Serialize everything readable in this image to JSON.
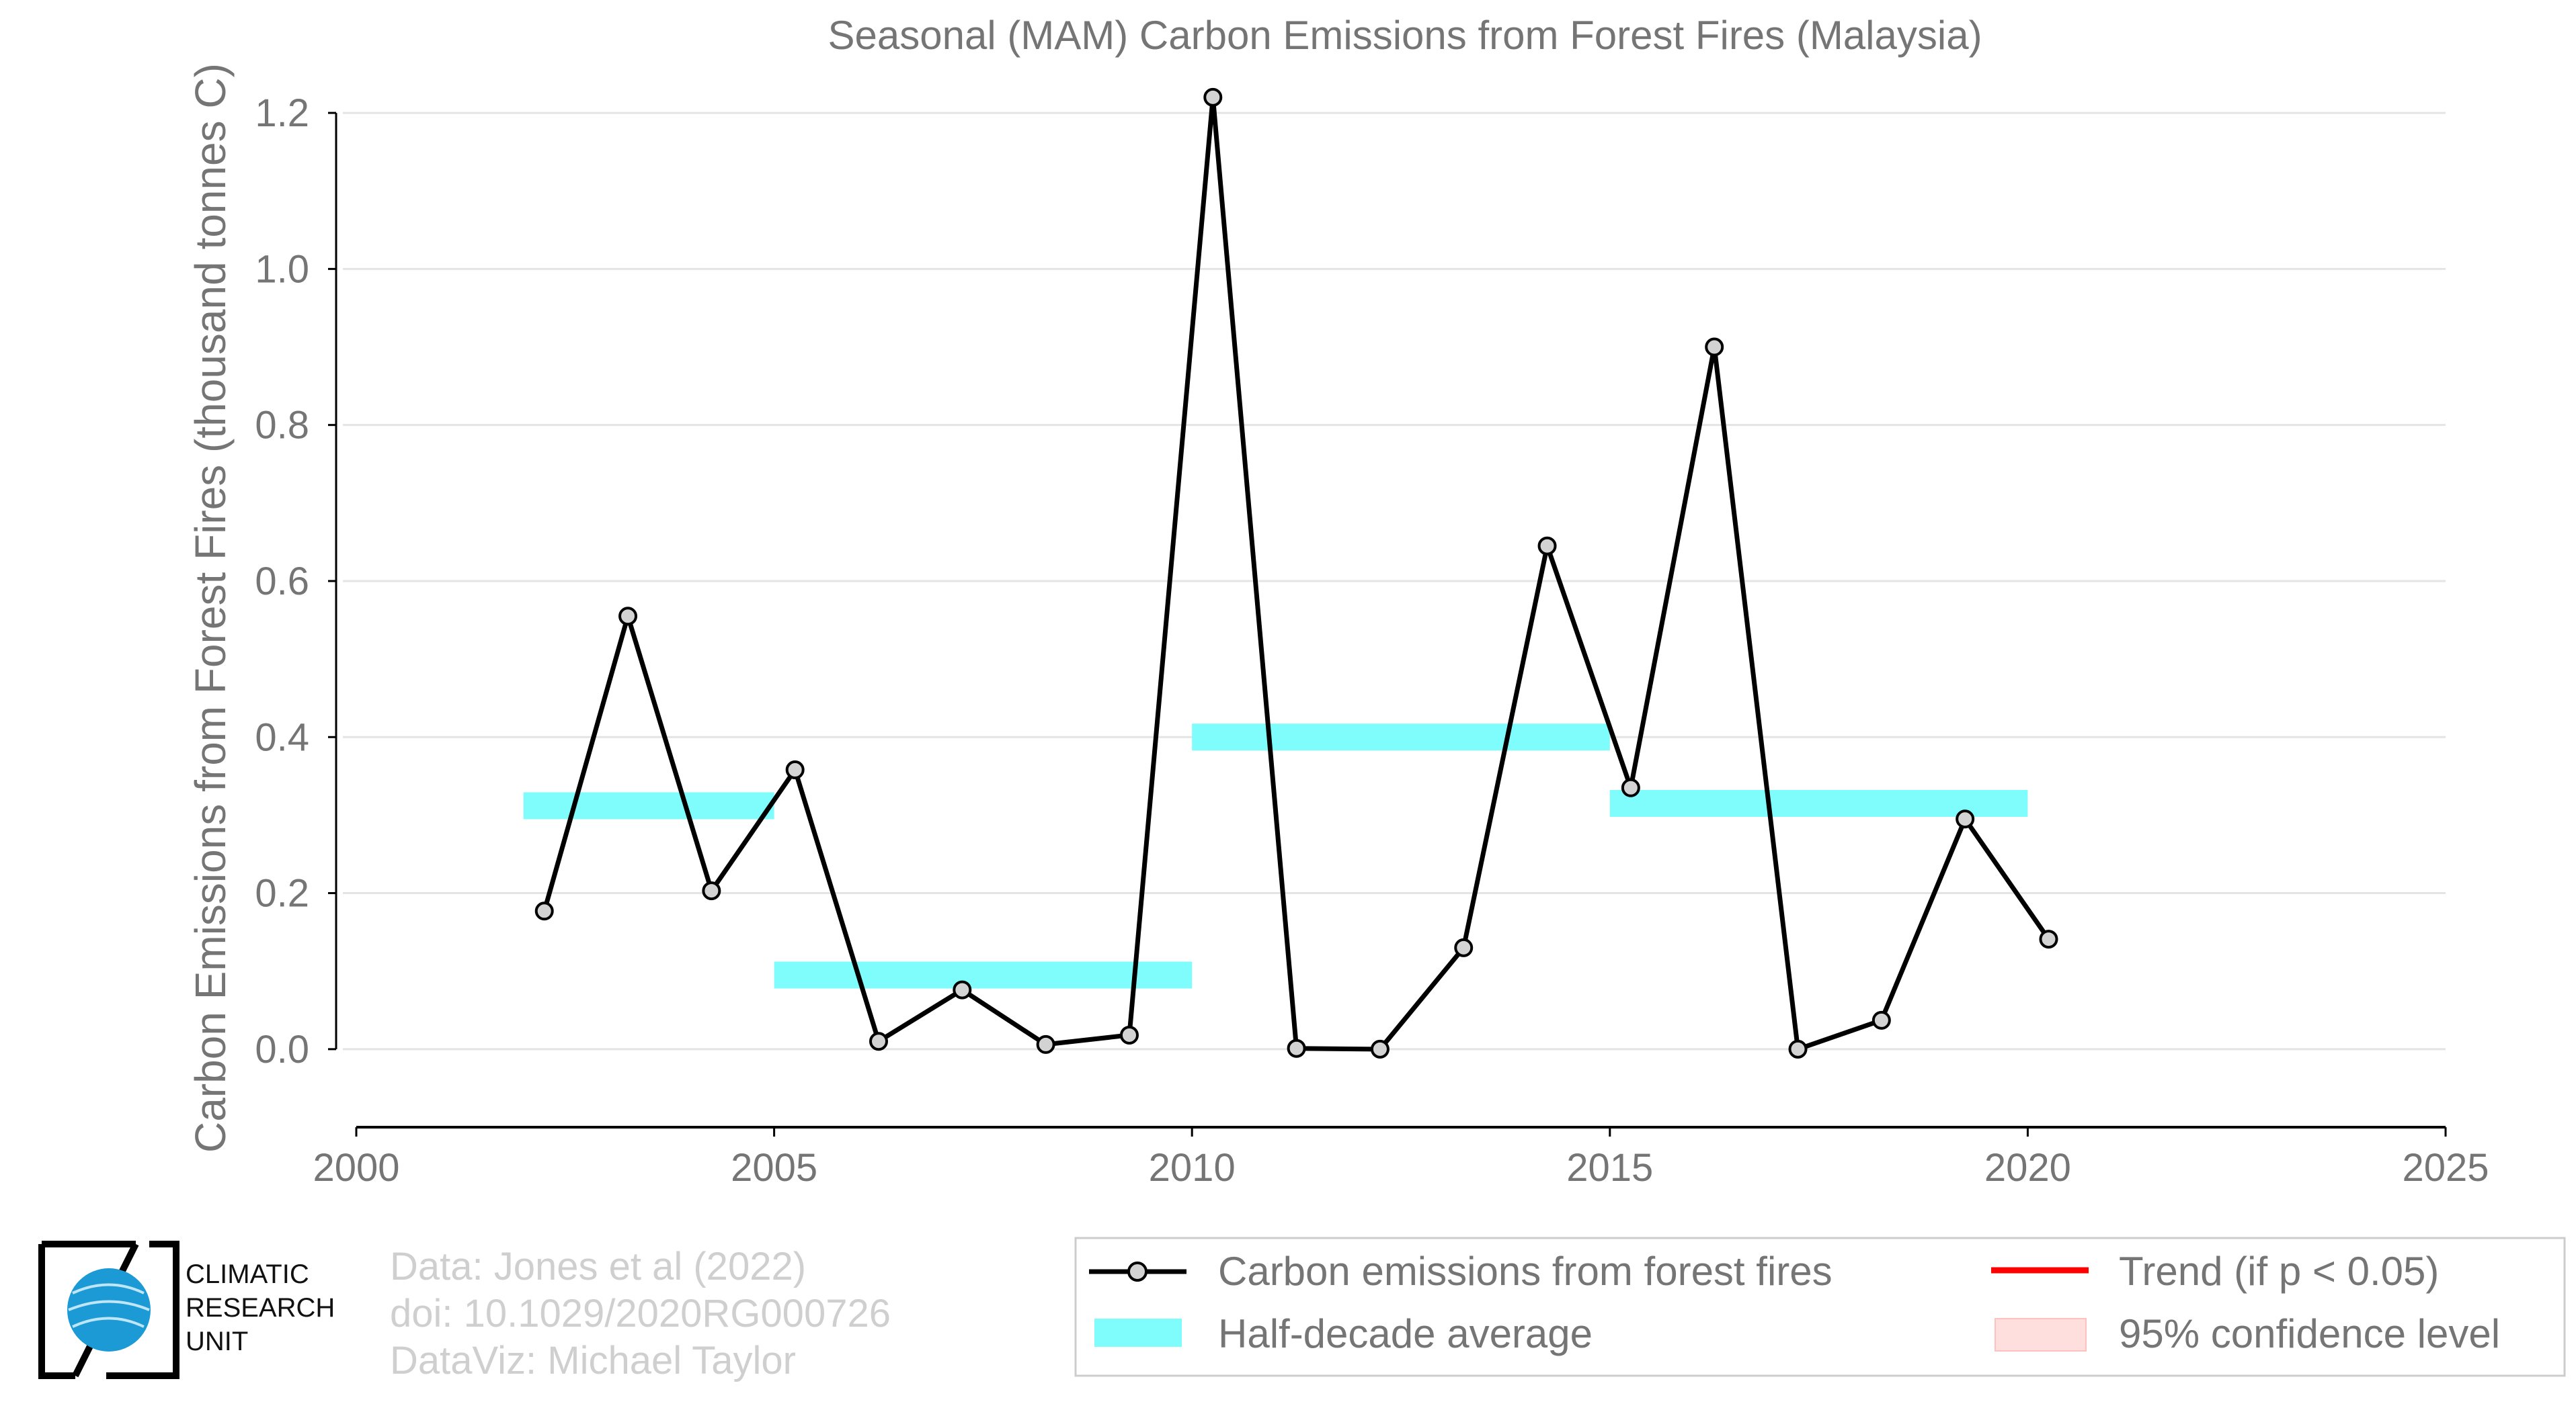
{
  "chart_data": {
    "type": "line",
    "title": "Seasonal (MAM) Carbon Emissions from Forest Fires (Malaysia)",
    "xlabel": "",
    "ylabel": "Carbon Emissions from Forest Fires (thousand tonnes C)",
    "xlim": [
      2000,
      2025
    ],
    "ylim": [
      -0.1,
      1.25
    ],
    "x_ticks": [
      2000,
      2005,
      2010,
      2015,
      2020,
      2025
    ],
    "y_ticks": [
      0.0,
      0.2,
      0.4,
      0.6,
      0.8,
      1.0,
      1.2
    ],
    "x_tick_labels": [
      "2000",
      "2005",
      "2010",
      "2015",
      "2020",
      "2025"
    ],
    "y_tick_labels": [
      "0.0",
      "0.2",
      "0.4",
      "0.6",
      "0.8",
      "1.0",
      "1.2"
    ],
    "grid": "horizontal",
    "series": [
      {
        "name": "Carbon emissions from forest fires",
        "color": "#000000",
        "marker_fill": "#d3d3d3",
        "x": [
          2002.25,
          2003.25,
          2004.25,
          2005.25,
          2006.25,
          2007.25,
          2008.25,
          2009.25,
          2010.25,
          2011.25,
          2012.25,
          2013.25,
          2014.25,
          2015.25,
          2016.25,
          2017.25,
          2018.25,
          2019.25,
          2020.25
        ],
        "values": [
          0.177,
          0.555,
          0.203,
          0.358,
          0.01,
          0.076,
          0.006,
          0.018,
          1.22,
          0.001,
          0.0,
          0.13,
          0.645,
          0.335,
          0.9,
          0.0,
          0.037,
          0.295,
          0.141
        ]
      }
    ],
    "half_decade_average": {
      "name": "Half-decade average",
      "color": "#7ffcfc",
      "segments": [
        {
          "start": 2002,
          "end": 2005,
          "value": 0.312
        },
        {
          "start": 2005,
          "end": 2010,
          "value": 0.095
        },
        {
          "start": 2010,
          "end": 2015,
          "value": 0.4
        },
        {
          "start": 2015,
          "end": 2020,
          "value": 0.315
        }
      ]
    },
    "trend": {
      "name": "Trend (if p < 0.05)",
      "color": "#ff0000",
      "shown": false
    },
    "confidence": {
      "name": "95% confidence level",
      "color": "#ffdede",
      "shown": false
    },
    "legend_position": "bottom-right"
  },
  "logo": {
    "line1": "CLIMATIC",
    "line2": "RESEARCH",
    "line3": "UNIT"
  },
  "credits": {
    "line1": "Data: Jones et al (2022)",
    "line2": "doi: 10.1029/2020RG000726",
    "line3": "DataViz: Michael Taylor"
  }
}
